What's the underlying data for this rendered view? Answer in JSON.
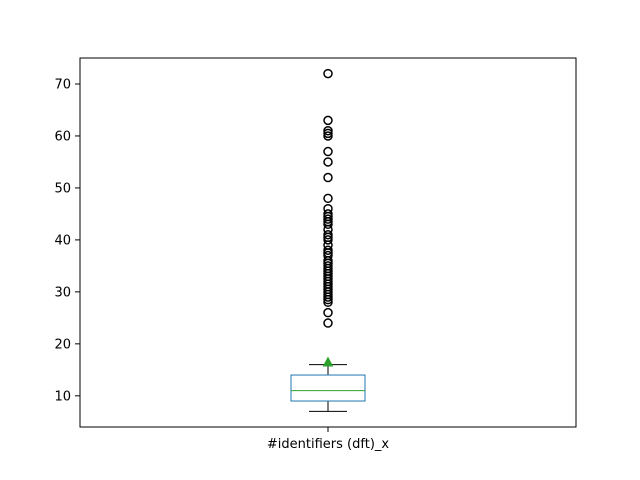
{
  "chart_data": {
    "type": "box",
    "category": "#identifiers (dft)_x",
    "ylim": [
      4,
      75
    ],
    "yticks": [
      10,
      20,
      30,
      40,
      50,
      60,
      70
    ],
    "box": {
      "q1": 9,
      "median": 11,
      "q3": 14,
      "whisker_low": 7,
      "whisker_high": 16,
      "mean": 16.4
    },
    "outliers": [
      24,
      26,
      28,
      28.5,
      29,
      29.5,
      30,
      30.5,
      31,
      31.5,
      32,
      32.5,
      33,
      33.5,
      34,
      34.5,
      35,
      35.5,
      36,
      37,
      37.5,
      38,
      39,
      40,
      40.5,
      41,
      42,
      43,
      43.5,
      44,
      44.5,
      45,
      46,
      48,
      52,
      55,
      57,
      60,
      60.5,
      61,
      63,
      72
    ],
    "colors": {
      "box": "#1f77b4",
      "median": "#2ca02c",
      "mean_marker": "#2ca02c",
      "whisker": "#000000",
      "outlier": "#000000"
    },
    "grid": false,
    "legend": "none"
  }
}
